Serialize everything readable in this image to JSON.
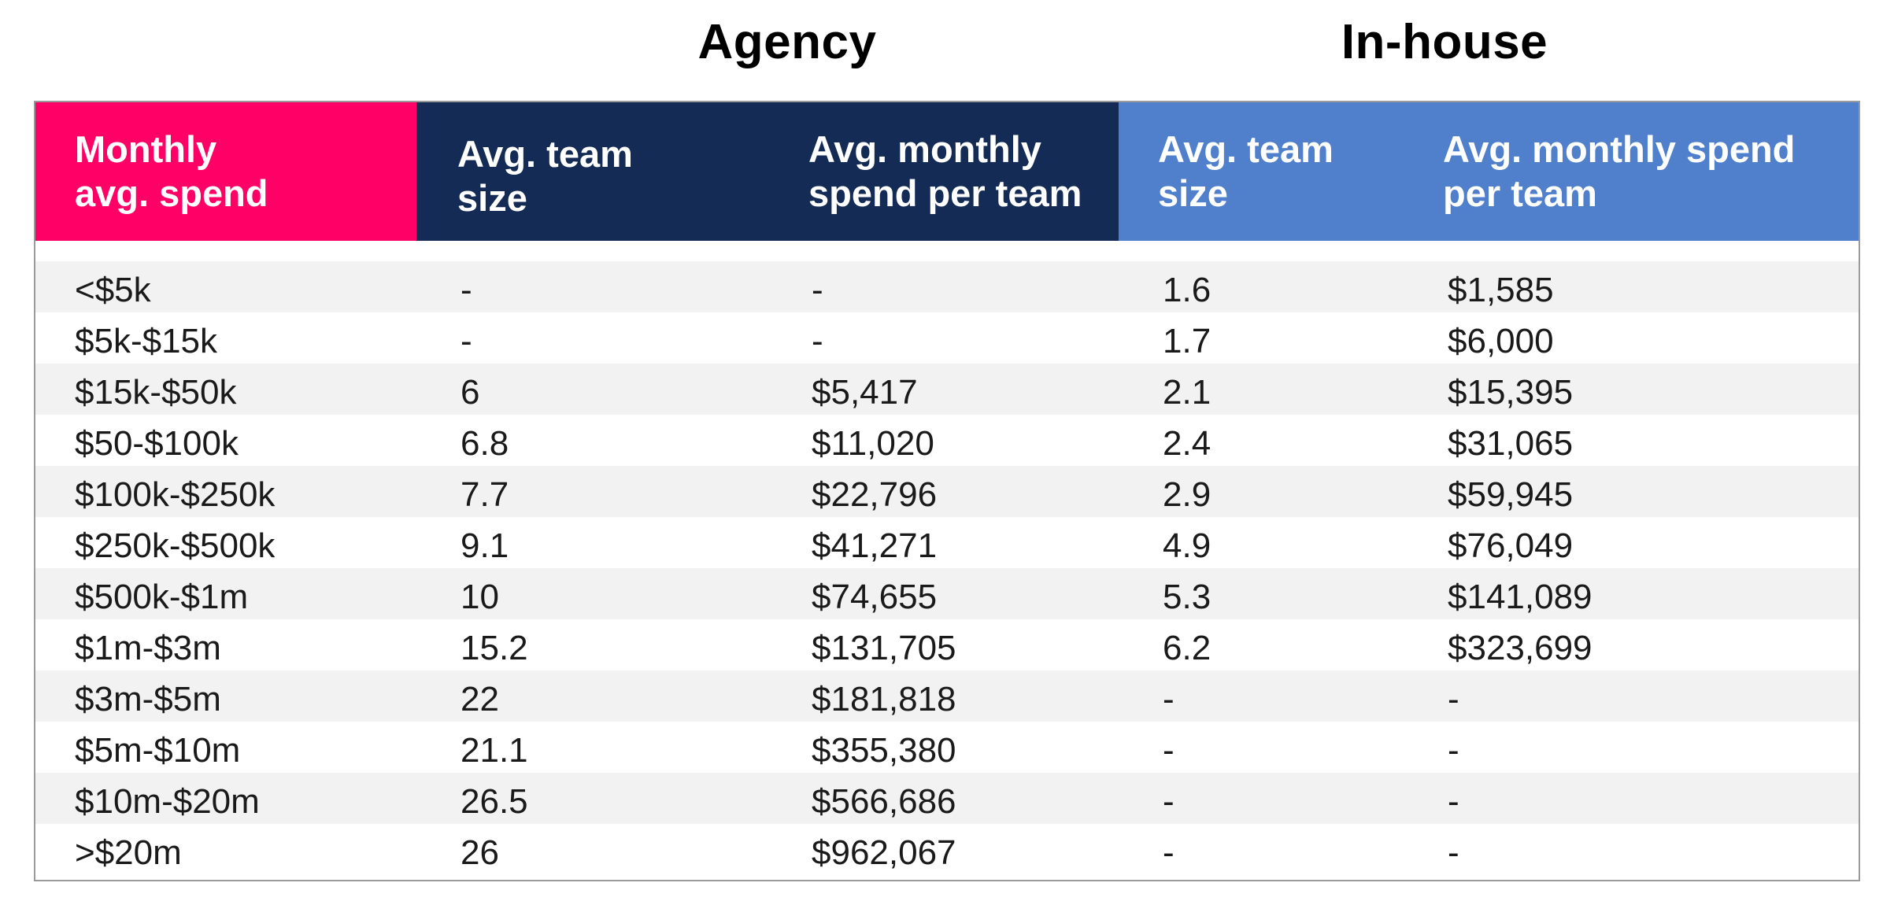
{
  "chart_data": {
    "type": "table",
    "groups": [
      {
        "label": "Agency",
        "columns": [
          1,
          2
        ]
      },
      {
        "label": "In-house",
        "columns": [
          3,
          4
        ]
      }
    ],
    "columns": [
      {
        "label_lines": [
          "Monthly",
          "avg. spend"
        ],
        "color": "#ff0066"
      },
      {
        "label_lines": [
          "Avg. team",
          "size"
        ],
        "color": "#142b55"
      },
      {
        "label_lines": [
          "Avg. monthly",
          "spend per team"
        ],
        "color": "#142b55"
      },
      {
        "label_lines": [
          "Avg. team",
          "size"
        ],
        "color": "#5080cc"
      },
      {
        "label_lines": [
          "Avg. monthly spend",
          "per team"
        ],
        "color": "#5080cc"
      }
    ],
    "rows": [
      [
        "<$5k",
        "-",
        "-",
        "1.6",
        "$1,585"
      ],
      [
        "$5k-$15k",
        "-",
        "-",
        "1.7",
        "$6,000"
      ],
      [
        "$15k-$50k",
        "6",
        "$5,417",
        "2.1",
        "$15,395"
      ],
      [
        "$50-$100k",
        "6.8",
        "$11,020",
        "2.4",
        "$31,065"
      ],
      [
        "$100k-$250k",
        "7.7",
        "$22,796",
        "2.9",
        "$59,945"
      ],
      [
        "$250k-$500k",
        "9.1",
        "$41,271",
        "4.9",
        "$76,049"
      ],
      [
        "$500k-$1m",
        "10",
        "$74,655",
        "5.3",
        "$141,089"
      ],
      [
        "$1m-$3m",
        "15.2",
        "$131,705",
        "6.2",
        "$323,699"
      ],
      [
        "$3m-$5m",
        "22",
        "$181,818",
        "-",
        "-"
      ],
      [
        "$5m-$10m",
        "21.1",
        "$355,380",
        "-",
        "-"
      ],
      [
        "$10m-$20m",
        "26.5",
        "$566,686",
        "-",
        "-"
      ],
      [
        ">$20m",
        "26",
        "$962,067",
        "-",
        "-"
      ]
    ]
  }
}
